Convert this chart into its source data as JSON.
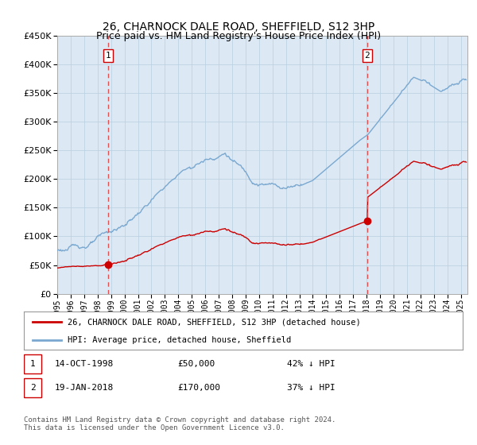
{
  "title": "26, CHARNOCK DALE ROAD, SHEFFIELD, S12 3HP",
  "subtitle": "Price paid vs. HM Land Registry's House Price Index (HPI)",
  "legend_line1": "26, CHARNOCK DALE ROAD, SHEFFIELD, S12 3HP (detached house)",
  "legend_line2": "HPI: Average price, detached house, Sheffield",
  "sale1_label": "1",
  "sale1_date_str": "14-OCT-1998",
  "sale1_price": 50000,
  "sale1_pct": "42% ↓ HPI",
  "sale1_year": 1998.79,
  "sale2_label": "2",
  "sale2_date_str": "19-JAN-2018",
  "sale2_price": 170000,
  "sale2_pct": "37% ↓ HPI",
  "sale2_year": 2018.05,
  "footer": "Contains HM Land Registry data © Crown copyright and database right 2024.\nThis data is licensed under the Open Government Licence v3.0.",
  "ylim": [
    0,
    450000
  ],
  "xlim_start": 1995.0,
  "xlim_end": 2025.5,
  "plot_bg": "#dce9f5",
  "red_color": "#cc0000",
  "blue_color": "#7aa8d0",
  "vline_color": "#e05050",
  "grid_color": "#b8cfe0"
}
